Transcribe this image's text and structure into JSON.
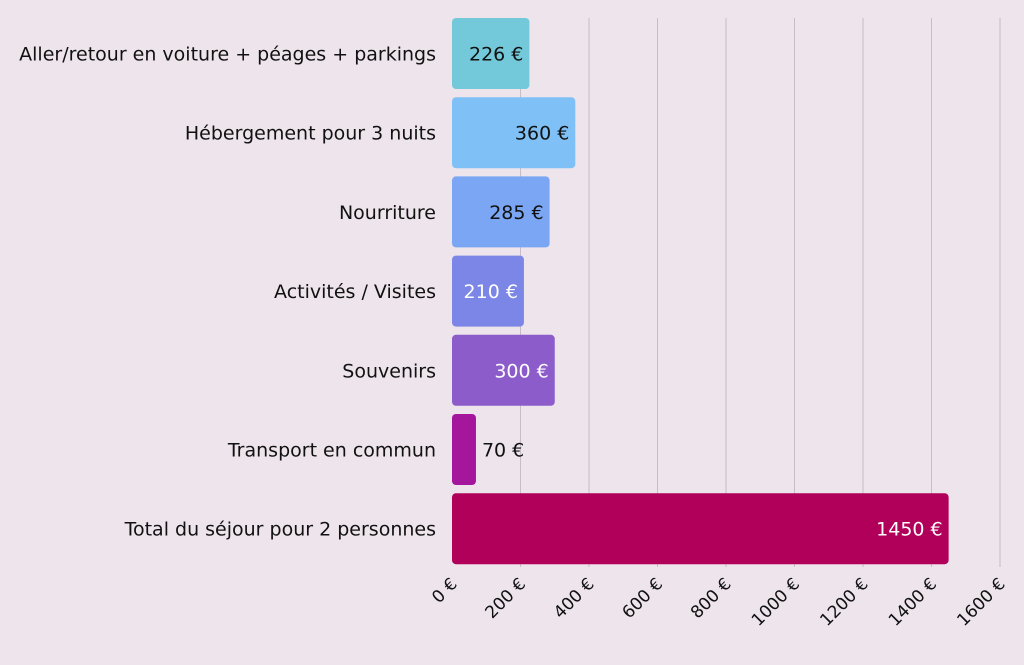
{
  "chart_data": {
    "type": "bar",
    "orientation": "horizontal",
    "categories": [
      "Aller/retour en voiture + péages + parkings",
      "Hébergement pour 3 nuits",
      "Nourriture",
      "Activités / Visites",
      "Souvenirs",
      "Transport en commun",
      "Total du séjour pour 2 personnes"
    ],
    "values": [
      226,
      360,
      285,
      210,
      300,
      70,
      1450
    ],
    "value_labels": [
      "226 €",
      "360 €",
      "285 €",
      "210 €",
      "300 €",
      "70 €",
      "1450 €"
    ],
    "bar_colors": [
      "#73c9d9",
      "#7fc1f7",
      "#7aa6f3",
      "#7b86e6",
      "#8c5ccb",
      "#a4179d",
      "#b00059"
    ],
    "label_colors": [
      "#111111",
      "#111111",
      "#111111",
      "#ffffff",
      "#ffffff",
      "#111111",
      "#ffffff"
    ],
    "xlim": [
      0,
      1600
    ],
    "x_ticks": [
      "0 €",
      "200 €",
      "400 €",
      "600 €",
      "800 €",
      "1000 €",
      "1200 €",
      "1400 €",
      "1600 €"
    ],
    "grid": "vertical",
    "colors": {
      "background": "#ede4ec",
      "grid": "#c7bdc7"
    }
  }
}
